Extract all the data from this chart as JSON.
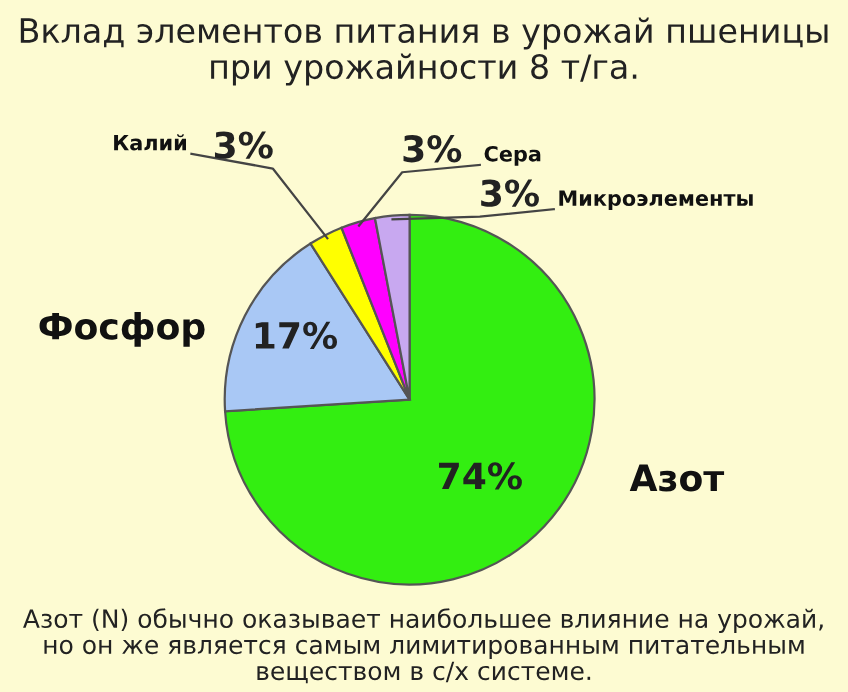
{
  "chart_data": {
    "type": "pie",
    "title": "Вклад элементов питания в урожай пшеницы\nпри урожайности 8 т/га.",
    "categories": [
      "Азот",
      "Фосфор",
      "Калий",
      "Сера",
      "Микроэлементы"
    ],
    "values": [
      74,
      17,
      3,
      3,
      3
    ],
    "colors": [
      "#33ee11",
      "#a9c8f5",
      "#ffff00",
      "#ff00ff",
      "#c8a8f0"
    ],
    "value_labels": [
      "74%",
      "17%",
      "3%",
      "3%",
      "3%"
    ],
    "annotations": [
      "Азот (N) обычно оказывает наибольшее влияние на урожай,\nно он же является самым лимитированным питательным\nвеществом в с/х системе."
    ]
  }
}
